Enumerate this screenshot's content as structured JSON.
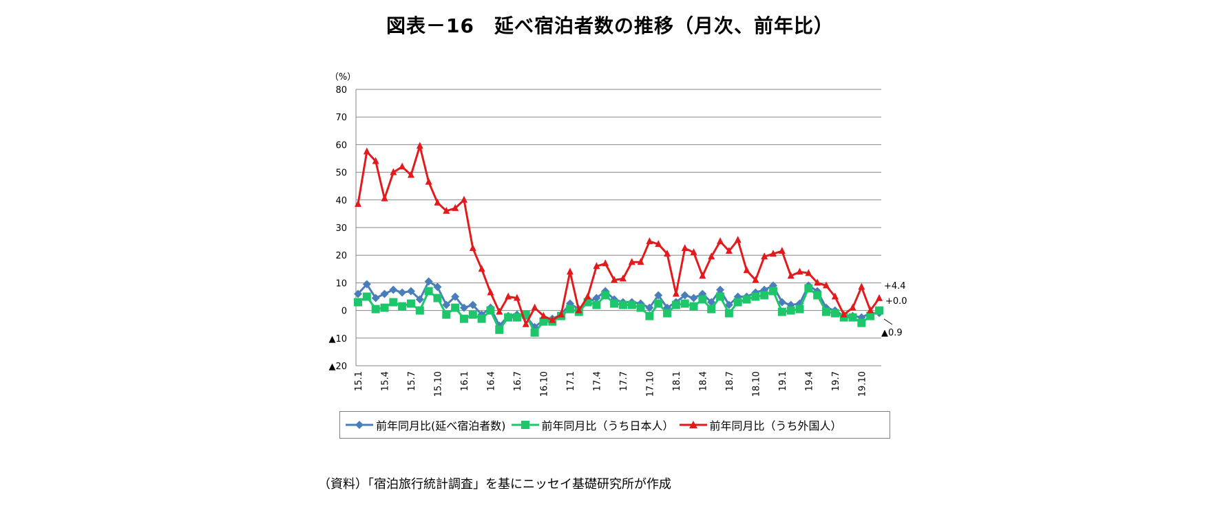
{
  "title": "図表－16　延べ宿泊者数の推移（月次、前年比）",
  "source": "（資料）「宿泊旅行統計調査」を基にニッセイ基礎研究所が作成",
  "chart_data": {
    "type": "line",
    "ylabel": "（%）",
    "ylim": [
      -20,
      80
    ],
    "yticks": [
      80,
      70,
      60,
      50,
      40,
      30,
      20,
      10,
      0,
      -10,
      -20
    ],
    "ytick_labels": [
      "80",
      "70",
      "60",
      "50",
      "40",
      "30",
      "20",
      "10",
      "0",
      "▲10",
      "▲20"
    ],
    "grid": true,
    "legend_position": "bottom",
    "x": [
      "15.1",
      "15.2",
      "15.3",
      "15.4",
      "15.5",
      "15.6",
      "15.7",
      "15.8",
      "15.9",
      "15.10",
      "15.11",
      "15.12",
      "16.1",
      "16.2",
      "16.3",
      "16.4",
      "16.5",
      "16.6",
      "16.7",
      "16.8",
      "16.9",
      "16.10",
      "16.11",
      "16.12",
      "17.1",
      "17.2",
      "17.3",
      "17.4",
      "17.5",
      "17.6",
      "17.7",
      "17.8",
      "17.9",
      "17.10",
      "17.11",
      "17.12",
      "18.1",
      "18.2",
      "18.3",
      "18.4",
      "18.5",
      "18.6",
      "18.7",
      "18.8",
      "18.9",
      "18.10",
      "18.11",
      "18.12",
      "19.1",
      "19.2",
      "19.3",
      "19.4",
      "19.5",
      "19.6",
      "19.7",
      "19.8",
      "19.9",
      "19.10",
      "19.11",
      "19.12"
    ],
    "xtick_labels": [
      "15.1",
      "15.4",
      "15.7",
      "15.10",
      "16.1",
      "16.4",
      "16.7",
      "16.10",
      "17.1",
      "17.4",
      "17.7",
      "17.10",
      "18.1",
      "18.4",
      "18.7",
      "18.10",
      "19.1",
      "19.4",
      "19.7",
      "19.10"
    ],
    "series": [
      {
        "name": "前年同月比(延べ宿泊者数)",
        "color": "#4a7ebb",
        "marker": "diamond",
        "values": [
          6,
          9.5,
          4.5,
          6,
          7.5,
          6.5,
          7,
          4,
          10.5,
          8.5,
          2,
          5,
          1,
          2,
          -1.5,
          1,
          -5.5,
          -2,
          -1.5,
          -2,
          -6,
          -3.5,
          -3,
          -1.5,
          2.5,
          0.5,
          3,
          4.5,
          7,
          4,
          3,
          3,
          2.5,
          1,
          5.5,
          1,
          3,
          5.5,
          4.5,
          6,
          3,
          7.5,
          2,
          5,
          5,
          6.5,
          7.5,
          9,
          3,
          2,
          2.5,
          9,
          7,
          1,
          0,
          -2,
          -2,
          -2.5,
          -1,
          -0.9
        ]
      },
      {
        "name": "前年同月比（うち日本人）",
        "color": "#1ec66b",
        "marker": "square",
        "values": [
          3,
          5,
          0.5,
          1,
          3,
          1.5,
          2.5,
          0,
          7,
          4.5,
          -1.5,
          1,
          -3,
          -1.5,
          -3,
          0,
          -7,
          -2.5,
          -2.5,
          -1.5,
          -8,
          -4,
          -4,
          -2,
          0.5,
          -0.5,
          3,
          2,
          5.5,
          2.5,
          2,
          2,
          1,
          -2,
          2.5,
          -1,
          2,
          2.5,
          1.5,
          4,
          0.5,
          5,
          -1,
          3,
          4,
          5,
          5.5,
          7,
          -0.5,
          0,
          0.5,
          8,
          5.5,
          -0.5,
          -1,
          -2.5,
          -2.5,
          -4.5,
          -2,
          0
        ]
      },
      {
        "name": "前年同月比（うち外国人）",
        "color": "#e31a1c",
        "marker": "triangle",
        "values": [
          38.5,
          57.5,
          54,
          40.5,
          50,
          52,
          49,
          59.5,
          46.5,
          39,
          36,
          37,
          40,
          22.5,
          15,
          6.5,
          -0.5,
          5,
          4.5,
          -5,
          1,
          -2,
          -3.5,
          -1.5,
          14,
          0,
          5,
          16,
          17,
          11,
          11.5,
          17.5,
          17.5,
          25,
          24,
          20.5,
          6,
          22.5,
          21,
          12.5,
          19.5,
          25,
          21.5,
          25.5,
          14.5,
          11,
          19.5,
          20.5,
          21.5,
          12.5,
          14,
          13.5,
          10,
          9,
          5,
          -1.5,
          1,
          8.5,
          0,
          4.4
        ]
      }
    ],
    "annotations": [
      "+4.4",
      "+0.0",
      "▲0.9"
    ]
  }
}
